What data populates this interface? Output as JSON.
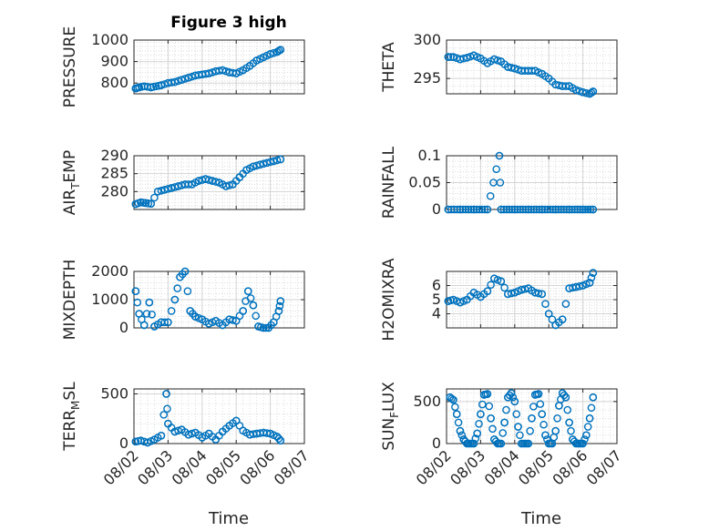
{
  "figure": {
    "title": "Figure 3 high",
    "xlabel": "Time",
    "xticks": [
      "08/02",
      "08/03",
      "08/04",
      "08/05",
      "08/06",
      "08/07"
    ],
    "marker_color": "#0072BD"
  },
  "chart_data": [
    {
      "type": "scatter",
      "ylabel": "PRESSURE",
      "ylim": [
        750,
        1000
      ],
      "yticks": [
        800,
        900,
        1000
      ],
      "x_start": "08/02",
      "x_end": "08/07",
      "series": [
        {
          "x": [
            0.05,
            0.15,
            0.3,
            0.5,
            0.8,
            1.0,
            1.2,
            1.4,
            1.6,
            1.8,
            2.0,
            2.2,
            2.4,
            2.6,
            2.8,
            3.0,
            3.2,
            3.4,
            3.6,
            3.8,
            4.0,
            4.2,
            4.3
          ],
          "y": [
            775,
            780,
            785,
            780,
            790,
            800,
            805,
            815,
            825,
            835,
            840,
            845,
            855,
            860,
            850,
            845,
            860,
            880,
            905,
            920,
            935,
            945,
            955
          ]
        }
      ]
    },
    {
      "type": "scatter",
      "ylabel": "THETA",
      "ylim": [
        293,
        300
      ],
      "yticks": [
        295,
        300
      ],
      "x_start": "08/02",
      "x_end": "08/07",
      "series": [
        {
          "x": [
            0.05,
            0.2,
            0.4,
            0.6,
            0.8,
            1.0,
            1.2,
            1.4,
            1.6,
            1.8,
            2.0,
            2.2,
            2.4,
            2.6,
            2.8,
            3.0,
            3.2,
            3.4,
            3.6,
            3.8,
            4.0,
            4.2,
            4.3
          ],
          "y": [
            297.8,
            297.8,
            297.5,
            297.7,
            298.0,
            297.6,
            297.0,
            297.5,
            297.2,
            296.5,
            296.3,
            296.0,
            296.0,
            296.0,
            295.6,
            295.0,
            294.2,
            294.0,
            294.0,
            293.5,
            293.2,
            293.0,
            293.3
          ]
        }
      ]
    },
    {
      "type": "scatter",
      "ylabel": "AIR_TEMP",
      "ylim": [
        275,
        290
      ],
      "yticks": [
        280,
        285,
        290
      ],
      "x_start": "08/02",
      "x_end": "08/07",
      "series": [
        {
          "x": [
            0.05,
            0.2,
            0.35,
            0.5,
            0.7,
            0.9,
            1.1,
            1.3,
            1.5,
            1.7,
            1.9,
            2.1,
            2.3,
            2.5,
            2.7,
            2.9,
            3.1,
            3.3,
            3.5,
            3.7,
            3.9,
            4.1,
            4.3
          ],
          "y": [
            276.5,
            277.0,
            276.8,
            276.6,
            280.0,
            280.5,
            281.0,
            281.5,
            282.0,
            282.0,
            283.0,
            283.5,
            283.0,
            282.5,
            281.5,
            282.0,
            284.0,
            286.0,
            287.0,
            287.5,
            288.0,
            288.5,
            289.0
          ]
        }
      ]
    },
    {
      "type": "scatter",
      "ylabel": "RAINFALL",
      "ylim": [
        0,
        0.1
      ],
      "yticks": [
        0,
        0.05,
        0.1
      ],
      "x_start": "08/02",
      "x_end": "08/07",
      "series": [
        {
          "x": [
            0.05,
            0.4,
            0.8,
            1.2,
            1.6,
            2.0,
            2.4,
            2.8,
            3.2,
            3.6,
            4.0,
            4.3,
            1.55
          ],
          "y": [
            0,
            0,
            0,
            0,
            0,
            0,
            0,
            0,
            0,
            0,
            0,
            0,
            0.1
          ]
        }
      ]
    },
    {
      "type": "scatter",
      "ylabel": "MIXDEPTH",
      "ylim": [
        0,
        2000
      ],
      "yticks": [
        0,
        1000,
        2000
      ],
      "x_start": "08/02",
      "x_end": "08/07",
      "series": [
        {
          "x": [
            0.05,
            0.15,
            0.3,
            0.45,
            0.6,
            0.8,
            1.0,
            1.2,
            1.35,
            1.5,
            1.65,
            1.8,
            2.0,
            2.2,
            2.4,
            2.6,
            2.8,
            3.0,
            3.2,
            3.35,
            3.5,
            3.65,
            3.8,
            3.95,
            4.1,
            4.25,
            4.3
          ],
          "y": [
            1300,
            500,
            100,
            900,
            50,
            200,
            200,
            1000,
            1800,
            2000,
            600,
            400,
            300,
            150,
            250,
            100,
            300,
            250,
            600,
            1300,
            800,
            50,
            0,
            0,
            200,
            600,
            950
          ]
        }
      ]
    },
    {
      "type": "scatter",
      "ylabel": "H2OMIXRA",
      "ylim": [
        3,
        7
      ],
      "yticks": [
        4,
        5,
        6
      ],
      "x_start": "08/02",
      "x_end": "08/07",
      "series": [
        {
          "x": [
            0.05,
            0.2,
            0.4,
            0.6,
            0.8,
            1.0,
            1.2,
            1.4,
            1.6,
            1.8,
            2.0,
            2.2,
            2.4,
            2.6,
            2.8,
            3.0,
            3.2,
            3.4,
            3.6,
            3.8,
            4.0,
            4.2,
            4.3
          ],
          "y": [
            4.9,
            5.0,
            4.8,
            5.0,
            5.5,
            5.2,
            5.6,
            6.5,
            6.3,
            5.4,
            5.5,
            5.7,
            5.8,
            5.5,
            5.4,
            4.0,
            3.2,
            3.6,
            5.8,
            5.9,
            6.0,
            6.2,
            6.9
          ]
        }
      ]
    },
    {
      "type": "scatter",
      "ylabel": "TERR_MSL",
      "ylim": [
        0,
        550
      ],
      "yticks": [
        0,
        500
      ],
      "x_start": "08/02",
      "x_end": "08/07",
      "series": [
        {
          "x": [
            0.05,
            0.2,
            0.4,
            0.6,
            0.8,
            0.95,
            1.0,
            1.2,
            1.4,
            1.6,
            1.8,
            2.0,
            2.2,
            2.4,
            2.6,
            2.8,
            3.0,
            3.2,
            3.4,
            3.6,
            3.8,
            4.0,
            4.2,
            4.3
          ],
          "y": [
            20,
            30,
            10,
            40,
            80,
            500,
            200,
            120,
            140,
            90,
            110,
            60,
            100,
            40,
            120,
            180,
            230,
            130,
            90,
            100,
            110,
            100,
            70,
            30
          ]
        }
      ]
    },
    {
      "type": "scatter",
      "ylabel": "SUN_FLUX",
      "ylim": [
        0,
        650
      ],
      "yticks": [
        0,
        500
      ],
      "x_start": "08/02",
      "x_end": "08/07",
      "series": [
        {
          "x": [
            0.1,
            0.2,
            0.3,
            0.4,
            0.5,
            0.6,
            0.7,
            0.8,
            0.9,
            1.0,
            1.1,
            1.2,
            1.3,
            1.4,
            1.5,
            1.6,
            1.7,
            1.8,
            1.9,
            2.0,
            2.1,
            2.2,
            2.3,
            2.4,
            2.5,
            2.6,
            2.7,
            2.8,
            2.9,
            3.0,
            3.1,
            3.2,
            3.3,
            3.4,
            3.5,
            3.6,
            3.7,
            3.8,
            3.9,
            4.0,
            4.1,
            4.2,
            4.3
          ],
          "y": [
            550,
            520,
            350,
            150,
            50,
            0,
            0,
            0,
            120,
            350,
            580,
            590,
            300,
            50,
            0,
            0,
            250,
            550,
            600,
            500,
            200,
            0,
            0,
            0,
            300,
            580,
            590,
            350,
            100,
            0,
            0,
            150,
            450,
            600,
            550,
            250,
            50,
            0,
            0,
            0,
            100,
            300,
            550
          ]
        }
      ]
    }
  ]
}
